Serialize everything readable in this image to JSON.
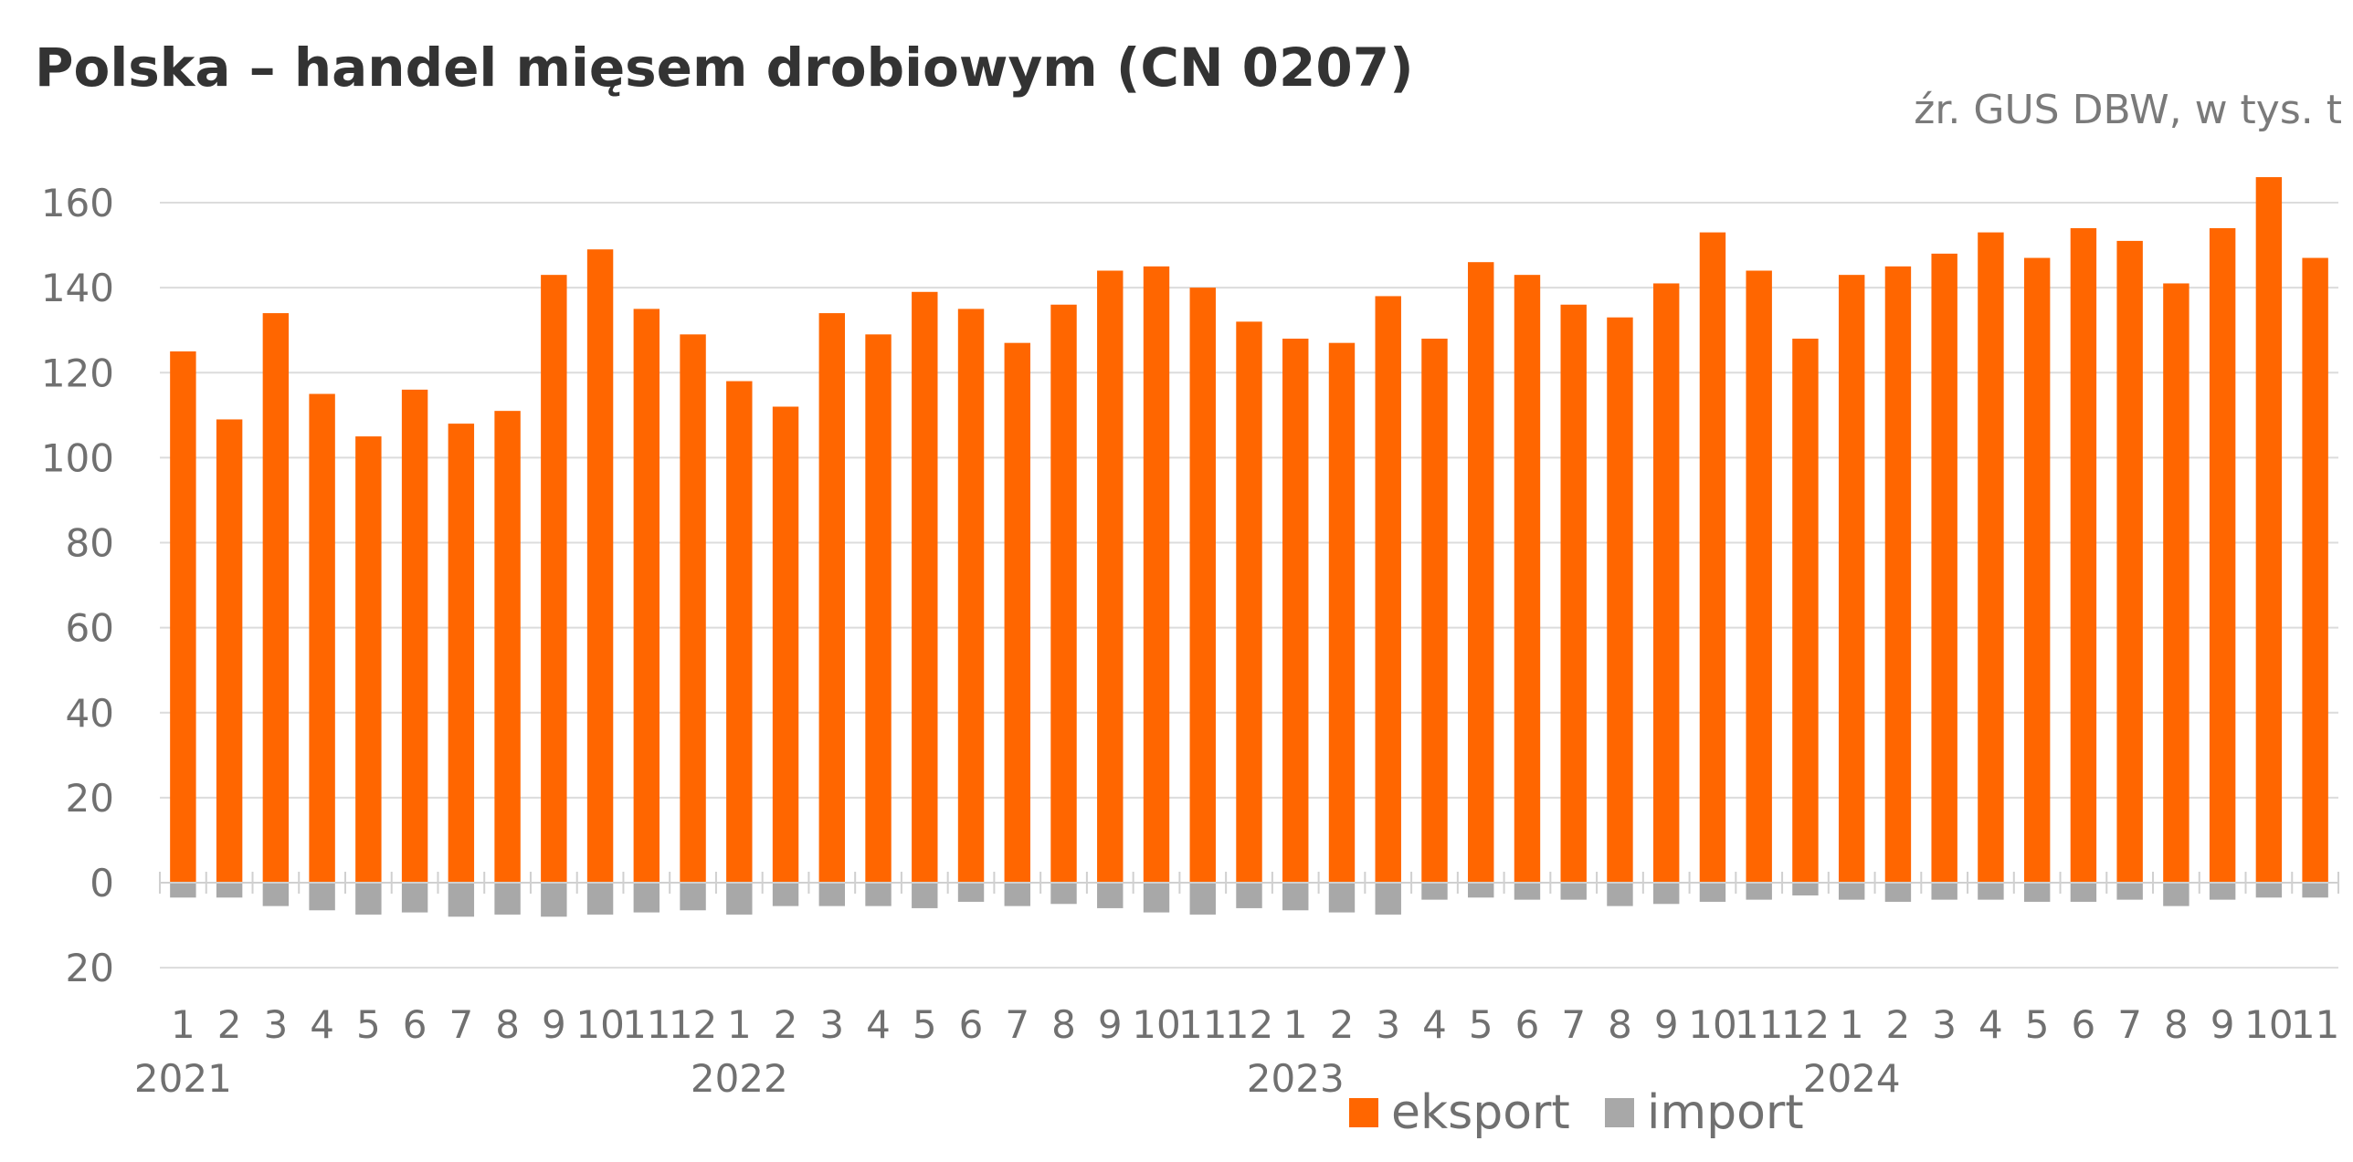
{
  "chart_data": {
    "type": "bar",
    "title": "Polska – handel mięsem drobiowym (CN 0207)",
    "subtitle": "źr. GUS DBW, w tys. t",
    "xlabel": "",
    "ylabel": "",
    "ylim": [
      -20,
      160
    ],
    "y_ticks": [
      160,
      140,
      120,
      100,
      80,
      60,
      40,
      20,
      0,
      -20
    ],
    "y_tick_labels": [
      "160",
      "140",
      "120",
      "100",
      "80",
      "60",
      "40",
      "20",
      "0",
      "20"
    ],
    "categories": [
      "1",
      "2",
      "3",
      "4",
      "5",
      "6",
      "7",
      "8",
      "9",
      "10",
      "11",
      "12",
      "1",
      "2",
      "3",
      "4",
      "5",
      "6",
      "7",
      "8",
      "9",
      "10",
      "11",
      "12",
      "1",
      "2",
      "3",
      "4",
      "5",
      "6",
      "7",
      "8",
      "9",
      "10",
      "11",
      "12",
      "1",
      "2",
      "3",
      "4",
      "5",
      "6",
      "7",
      "8",
      "9",
      "10",
      "11"
    ],
    "year_labels": [
      {
        "label": "2021",
        "index": 0
      },
      {
        "label": "2022",
        "index": 12
      },
      {
        "label": "2023",
        "index": 24
      },
      {
        "label": "2024",
        "index": 36
      }
    ],
    "series": [
      {
        "name": "eksport",
        "color": "#ff6600",
        "values": [
          125,
          109,
          134,
          115,
          105,
          116,
          108,
          111,
          143,
          149,
          135,
          129,
          118,
          112,
          134,
          129,
          139,
          135,
          127,
          136,
          144,
          145,
          140,
          132,
          128,
          127,
          138,
          128,
          146,
          143,
          136,
          133,
          141,
          153,
          144,
          128,
          143,
          145,
          148,
          153,
          147,
          154,
          151,
          141,
          154,
          166,
          147
        ]
      },
      {
        "name": "import",
        "color": "#a8a8a8",
        "values": [
          -3.5,
          -3.5,
          -5.5,
          -6.5,
          -7.5,
          -7,
          -8,
          -7.5,
          -8,
          -7.5,
          -7,
          -6.5,
          -7.5,
          -5.5,
          -5.5,
          -5.5,
          -6,
          -4.5,
          -5.5,
          -5,
          -6,
          -7,
          -7.5,
          -6,
          -6.5,
          -7,
          -7.5,
          -4,
          -3.5,
          -4,
          -4,
          -5.5,
          -5,
          -4.5,
          -4,
          -3,
          -4,
          -4.5,
          -4,
          -4,
          -4.5,
          -4.5,
          -4,
          -5.5,
          -4,
          -3.5,
          -3.5
        ]
      }
    ],
    "grid": true,
    "legend_position": "bottom-center"
  }
}
